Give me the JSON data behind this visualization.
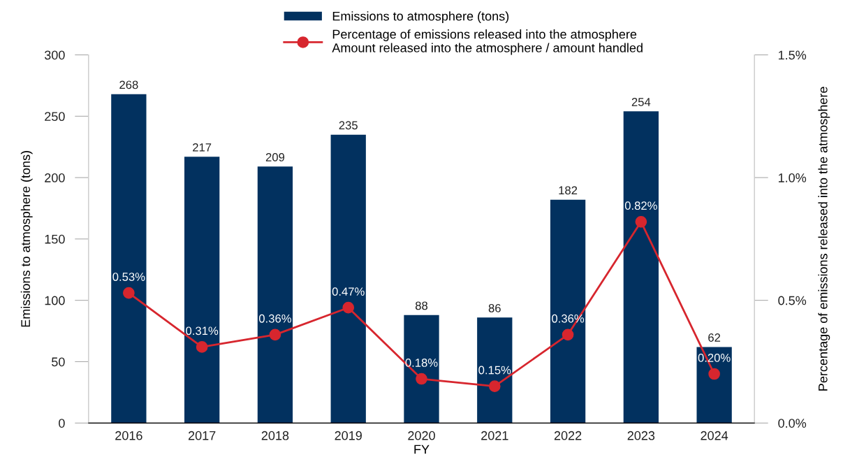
{
  "chart_data": {
    "type": "bar",
    "categories": [
      "2016",
      "2017",
      "2018",
      "2019",
      "2020",
      "2021",
      "2022",
      "2023",
      "2024"
    ],
    "xlabel": "FY",
    "ylabel": "Emissions to atmosphere (tons)",
    "y2label": "Percentage of emissions released into the atmosphere",
    "ylim": [
      0,
      300
    ],
    "yticks": [
      0,
      50,
      100,
      150,
      200,
      250,
      300
    ],
    "y2lim": [
      0,
      1.5
    ],
    "y2ticks": [
      {
        "value": 0,
        "label": "0.0%"
      },
      {
        "value": 0.5,
        "label": "0.5%"
      },
      {
        "value": 1.0,
        "label": "1.0%"
      },
      {
        "value": 1.5,
        "label": "1.5%"
      }
    ],
    "data_labels": true,
    "legend": "top",
    "grid": false,
    "series": [
      {
        "name": "Emissions to atmosphere (tons)",
        "color": "#02315f",
        "values": [
          268,
          217,
          209,
          235,
          88,
          86,
          182,
          254,
          62
        ]
      },
      {
        "name": "Percentage of emissions released into the atmosphere\nAmount released into the atmosphere / amount handled",
        "type": "line",
        "axis": "y2",
        "color": "#d7262e",
        "marker": "circle",
        "line_style": "solid",
        "values": [
          0.53,
          0.31,
          0.36,
          0.47,
          0.18,
          0.15,
          0.36,
          0.82,
          0.2
        ],
        "value_labels": [
          "0.53%",
          "0.31%",
          "0.36%",
          "0.47%",
          "0.18%",
          "0.15%",
          "0.36%",
          "0.82%",
          "0.20%"
        ]
      }
    ]
  }
}
